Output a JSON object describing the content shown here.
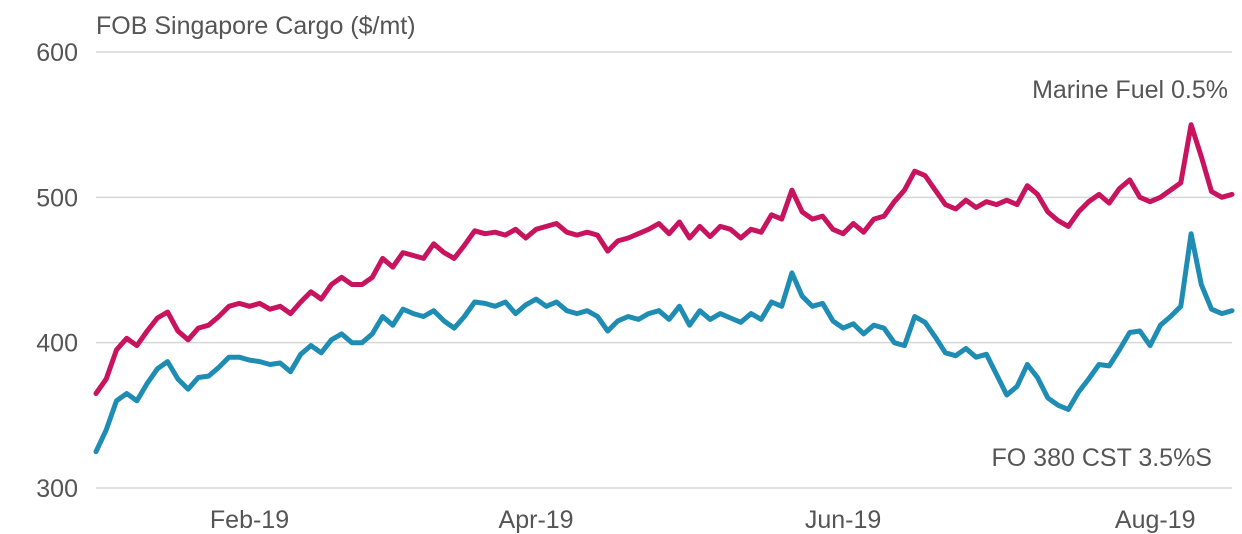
{
  "chart_data": {
    "type": "line",
    "ylabel": "FOB Singapore Cargo ($/mt)",
    "ylim": [
      300,
      600
    ],
    "yticks": [
      300,
      400,
      500,
      600
    ],
    "xlim": [
      0,
      222
    ],
    "xticks": [
      {
        "label": "Feb-19",
        "x": 30
      },
      {
        "label": "Apr-19",
        "x": 86
      },
      {
        "label": "Jun-19",
        "x": 146
      },
      {
        "label": "Aug-19",
        "x": 207
      }
    ],
    "grid": true,
    "series": [
      {
        "name": "Marine Fuel 0.5%",
        "color": "#c8145f",
        "points": [
          [
            0,
            365
          ],
          [
            2,
            375
          ],
          [
            4,
            395
          ],
          [
            6,
            403
          ],
          [
            8,
            398
          ],
          [
            10,
            408
          ],
          [
            12,
            417
          ],
          [
            14,
            421
          ],
          [
            16,
            408
          ],
          [
            18,
            402
          ],
          [
            20,
            410
          ],
          [
            22,
            412
          ],
          [
            24,
            418
          ],
          [
            26,
            425
          ],
          [
            28,
            427
          ],
          [
            30,
            425
          ],
          [
            32,
            427
          ],
          [
            34,
            423
          ],
          [
            36,
            425
          ],
          [
            38,
            420
          ],
          [
            40,
            428
          ],
          [
            42,
            435
          ],
          [
            44,
            430
          ],
          [
            46,
            440
          ],
          [
            48,
            445
          ],
          [
            50,
            440
          ],
          [
            52,
            440
          ],
          [
            54,
            445
          ],
          [
            56,
            458
          ],
          [
            58,
            452
          ],
          [
            60,
            462
          ],
          [
            62,
            460
          ],
          [
            64,
            458
          ],
          [
            66,
            468
          ],
          [
            68,
            462
          ],
          [
            70,
            458
          ],
          [
            72,
            467
          ],
          [
            74,
            477
          ],
          [
            76,
            475
          ],
          [
            78,
            476
          ],
          [
            80,
            474
          ],
          [
            82,
            478
          ],
          [
            84,
            472
          ],
          [
            86,
            478
          ],
          [
            88,
            480
          ],
          [
            90,
            482
          ],
          [
            92,
            476
          ],
          [
            94,
            474
          ],
          [
            96,
            476
          ],
          [
            98,
            474
          ],
          [
            100,
            463
          ],
          [
            102,
            470
          ],
          [
            104,
            472
          ],
          [
            106,
            475
          ],
          [
            108,
            478
          ],
          [
            110,
            482
          ],
          [
            112,
            475
          ],
          [
            114,
            483
          ],
          [
            116,
            472
          ],
          [
            118,
            480
          ],
          [
            120,
            473
          ],
          [
            122,
            480
          ],
          [
            124,
            478
          ],
          [
            126,
            472
          ],
          [
            128,
            478
          ],
          [
            130,
            476
          ],
          [
            132,
            488
          ],
          [
            134,
            485
          ],
          [
            136,
            505
          ],
          [
            138,
            490
          ],
          [
            140,
            485
          ],
          [
            142,
            487
          ],
          [
            144,
            478
          ],
          [
            146,
            475
          ],
          [
            148,
            482
          ],
          [
            150,
            476
          ],
          [
            152,
            485
          ],
          [
            154,
            487
          ],
          [
            156,
            497
          ],
          [
            158,
            505
          ],
          [
            160,
            518
          ],
          [
            162,
            515
          ],
          [
            164,
            505
          ],
          [
            166,
            495
          ],
          [
            168,
            492
          ],
          [
            170,
            498
          ],
          [
            172,
            493
          ],
          [
            174,
            497
          ],
          [
            176,
            495
          ],
          [
            178,
            498
          ],
          [
            180,
            495
          ],
          [
            182,
            508
          ],
          [
            184,
            502
          ],
          [
            186,
            490
          ],
          [
            188,
            484
          ],
          [
            190,
            480
          ],
          [
            192,
            490
          ],
          [
            194,
            497
          ],
          [
            196,
            502
          ],
          [
            198,
            496
          ],
          [
            200,
            506
          ],
          [
            202,
            512
          ],
          [
            204,
            500
          ],
          [
            206,
            497
          ],
          [
            208,
            500
          ],
          [
            210,
            505
          ],
          [
            212,
            510
          ],
          [
            214,
            550
          ],
          [
            216,
            528
          ],
          [
            218,
            504
          ],
          [
            220,
            500
          ],
          [
            222,
            502
          ]
        ]
      },
      {
        "name": "FO 380 CST 3.5%S",
        "color": "#1f8db3",
        "points": [
          [
            0,
            325
          ],
          [
            2,
            340
          ],
          [
            4,
            360
          ],
          [
            6,
            365
          ],
          [
            8,
            360
          ],
          [
            10,
            372
          ],
          [
            12,
            382
          ],
          [
            14,
            387
          ],
          [
            16,
            375
          ],
          [
            18,
            368
          ],
          [
            20,
            376
          ],
          [
            22,
            377
          ],
          [
            24,
            383
          ],
          [
            26,
            390
          ],
          [
            28,
            390
          ],
          [
            30,
            388
          ],
          [
            32,
            387
          ],
          [
            34,
            385
          ],
          [
            36,
            386
          ],
          [
            38,
            380
          ],
          [
            40,
            392
          ],
          [
            42,
            398
          ],
          [
            44,
            393
          ],
          [
            46,
            402
          ],
          [
            48,
            406
          ],
          [
            50,
            400
          ],
          [
            52,
            400
          ],
          [
            54,
            406
          ],
          [
            56,
            418
          ],
          [
            58,
            412
          ],
          [
            60,
            423
          ],
          [
            62,
            420
          ],
          [
            64,
            418
          ],
          [
            66,
            422
          ],
          [
            68,
            415
          ],
          [
            70,
            410
          ],
          [
            72,
            418
          ],
          [
            74,
            428
          ],
          [
            76,
            427
          ],
          [
            78,
            425
          ],
          [
            80,
            428
          ],
          [
            82,
            420
          ],
          [
            84,
            426
          ],
          [
            86,
            430
          ],
          [
            88,
            425
          ],
          [
            90,
            428
          ],
          [
            92,
            422
          ],
          [
            94,
            420
          ],
          [
            96,
            422
          ],
          [
            98,
            418
          ],
          [
            100,
            408
          ],
          [
            102,
            415
          ],
          [
            104,
            418
          ],
          [
            106,
            416
          ],
          [
            108,
            420
          ],
          [
            110,
            422
          ],
          [
            112,
            416
          ],
          [
            114,
            425
          ],
          [
            116,
            412
          ],
          [
            118,
            422
          ],
          [
            120,
            416
          ],
          [
            122,
            420
          ],
          [
            124,
            417
          ],
          [
            126,
            414
          ],
          [
            128,
            420
          ],
          [
            130,
            416
          ],
          [
            132,
            428
          ],
          [
            134,
            425
          ],
          [
            136,
            448
          ],
          [
            138,
            432
          ],
          [
            140,
            425
          ],
          [
            142,
            427
          ],
          [
            144,
            415
          ],
          [
            146,
            410
          ],
          [
            148,
            413
          ],
          [
            150,
            406
          ],
          [
            152,
            412
          ],
          [
            154,
            410
          ],
          [
            156,
            400
          ],
          [
            158,
            398
          ],
          [
            160,
            418
          ],
          [
            162,
            414
          ],
          [
            164,
            404
          ],
          [
            166,
            393
          ],
          [
            168,
            391
          ],
          [
            170,
            396
          ],
          [
            172,
            390
          ],
          [
            174,
            392
          ],
          [
            176,
            378
          ],
          [
            178,
            364
          ],
          [
            180,
            370
          ],
          [
            182,
            385
          ],
          [
            184,
            376
          ],
          [
            186,
            362
          ],
          [
            188,
            357
          ],
          [
            190,
            354
          ],
          [
            192,
            366
          ],
          [
            194,
            375
          ],
          [
            196,
            385
          ],
          [
            198,
            384
          ],
          [
            200,
            395
          ],
          [
            202,
            407
          ],
          [
            204,
            408
          ],
          [
            206,
            398
          ],
          [
            208,
            412
          ],
          [
            210,
            418
          ],
          [
            212,
            425
          ],
          [
            214,
            475
          ],
          [
            216,
            440
          ],
          [
            218,
            423
          ],
          [
            220,
            420
          ],
          [
            222,
            422
          ]
        ]
      }
    ]
  }
}
